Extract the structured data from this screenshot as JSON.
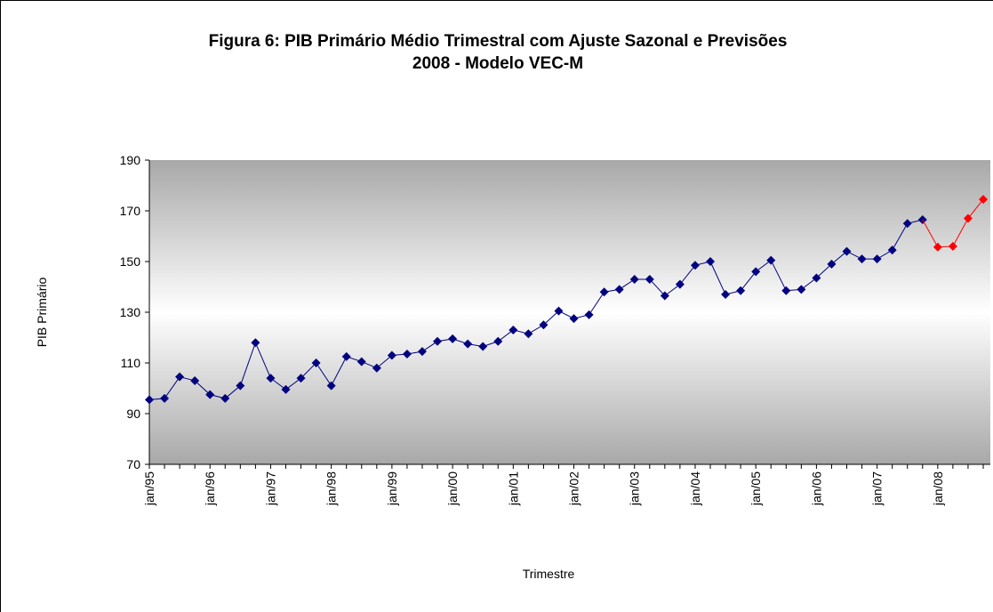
{
  "chart_data": {
    "type": "line",
    "title": "Figura 6: PIB Primário Médio Trimestral com Ajuste Sazonal e Previsões",
    "subtitle": "2008 - Modelo VEC-M",
    "x_label": "Trimestre",
    "y_label": "PIB Primário",
    "categories": [
      "jan/95",
      null,
      null,
      null,
      "jan/96",
      null,
      null,
      null,
      "jan/97",
      null,
      null,
      null,
      "jan/98",
      null,
      null,
      null,
      "jan/99",
      null,
      null,
      null,
      "jan/00",
      null,
      null,
      null,
      "jan/01",
      null,
      null,
      null,
      "jan/02",
      null,
      null,
      null,
      "jan/03",
      null,
      null,
      null,
      "jan/04",
      null,
      null,
      null,
      "jan/05",
      null,
      null,
      null,
      "jan/06",
      null,
      null,
      null,
      "jan/07",
      null,
      null,
      null,
      "jan/08",
      null,
      null,
      null
    ],
    "series": [
      {
        "color": "#000080",
        "values": [
          95.5,
          96,
          104.5,
          103,
          97.5,
          96,
          101,
          118,
          104,
          99.5,
          104,
          110,
          101,
          112.5,
          110.5,
          108,
          113,
          113.5,
          114.5,
          118.5,
          119.5,
          117.5,
          116.5,
          118.5,
          123,
          121.5,
          125,
          130.5,
          127.5,
          129,
          138,
          139,
          143,
          143,
          136.5,
          141,
          148.5,
          150,
          137,
          138.5,
          146,
          150.5,
          138.5,
          139,
          143.5,
          149,
          154,
          151,
          151,
          154.5,
          165,
          166.5,
          null,
          null,
          null,
          null
        ]
      },
      {
        "color": "#ff0000",
        "values": [
          null,
          null,
          null,
          null,
          null,
          null,
          null,
          null,
          null,
          null,
          null,
          null,
          null,
          null,
          null,
          null,
          null,
          null,
          null,
          null,
          null,
          null,
          null,
          null,
          null,
          null,
          null,
          null,
          null,
          null,
          null,
          null,
          null,
          null,
          null,
          null,
          null,
          null,
          null,
          null,
          null,
          null,
          null,
          null,
          null,
          null,
          null,
          null,
          null,
          null,
          null,
          null,
          155.7,
          156,
          167,
          174.5
        ]
      }
    ],
    "ylim": [
      70,
      190
    ],
    "yticks": [
      70,
      90,
      110,
      130,
      150,
      170,
      190
    ]
  }
}
